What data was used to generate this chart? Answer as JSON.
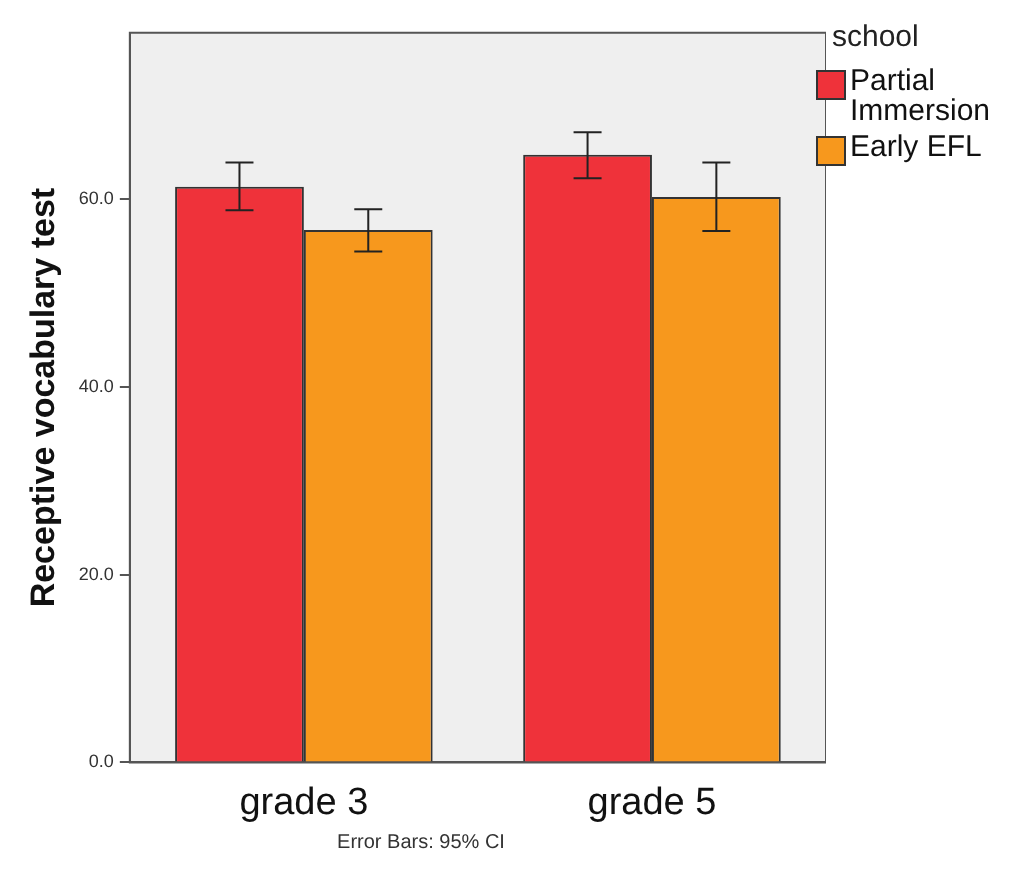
{
  "chart_data": {
    "type": "bar",
    "ylabel": "Receptive vocabulary test",
    "legend_title": "school",
    "categories": [
      "grade 3",
      "grade 5"
    ],
    "series": [
      {
        "name": "Partial Immersion",
        "color": "#ef323a",
        "values": [
          61.3,
          64.7
        ],
        "errors": [
          [
            58.8,
            63.9
          ],
          [
            62.2,
            67.1
          ]
        ]
      },
      {
        "name": "Early EFL",
        "color": "#f7981d",
        "values": [
          56.7,
          60.2
        ],
        "errors": [
          [
            54.4,
            58.9
          ],
          [
            56.6,
            63.9
          ]
        ]
      }
    ],
    "ylim": [
      0,
      77.7
    ],
    "yticks": [
      {
        "value": 0,
        "label": "0.0"
      },
      {
        "value": 20,
        "label": "20.0"
      },
      {
        "value": 40,
        "label": "40.0"
      },
      {
        "value": 60,
        "label": "60.0"
      }
    ],
    "grid": false,
    "legend": "top right",
    "annotations": [
      "Error Bars: 95% CI"
    ]
  }
}
